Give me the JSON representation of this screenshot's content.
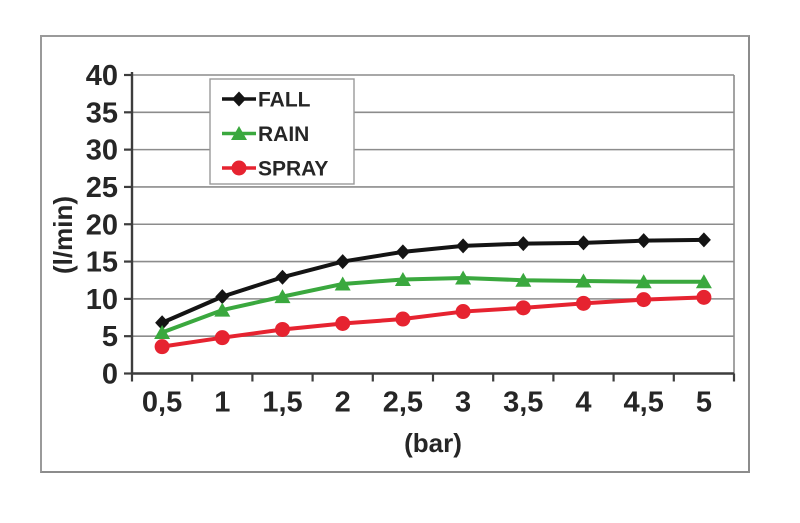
{
  "chart_data": {
    "type": "line",
    "title": "",
    "xlabel": "(bar)",
    "ylabel": "(l/min)",
    "x": [
      0.5,
      1,
      1.5,
      2,
      2.5,
      3,
      3.5,
      4,
      4.5,
      5
    ],
    "x_tick_labels": [
      "0,5",
      "1",
      "1,5",
      "2",
      "2,5",
      "3",
      "3,5",
      "4",
      "4,5",
      "5"
    ],
    "ylim": [
      0,
      40
    ],
    "ytick_step": 5,
    "grid": "horizontal-gridlines",
    "legend_position": "inside-top-left",
    "series": [
      {
        "name": "FALL",
        "color": "#141414",
        "marker": "diamond",
        "values": [
          6.8,
          10.3,
          12.9,
          15.0,
          16.3,
          17.1,
          17.4,
          17.5,
          17.8,
          17.9
        ]
      },
      {
        "name": "RAIN",
        "color": "#3aa83e",
        "marker": "triangle",
        "values": [
          5.5,
          8.5,
          10.3,
          12.0,
          12.6,
          12.8,
          12.5,
          12.4,
          12.3,
          12.3
        ]
      },
      {
        "name": "SPRAY",
        "color": "#e62330",
        "marker": "circle",
        "values": [
          3.6,
          4.8,
          5.9,
          6.7,
          7.3,
          8.3,
          8.8,
          9.4,
          9.9,
          10.2
        ]
      }
    ],
    "colors": {
      "gridline": "#8c8c8c",
      "axis": "#3d3d3d",
      "text": "#262626",
      "frame_border": "#8c8c8c",
      "legend_border": "#999999",
      "plot_background": "#ffffff"
    }
  }
}
